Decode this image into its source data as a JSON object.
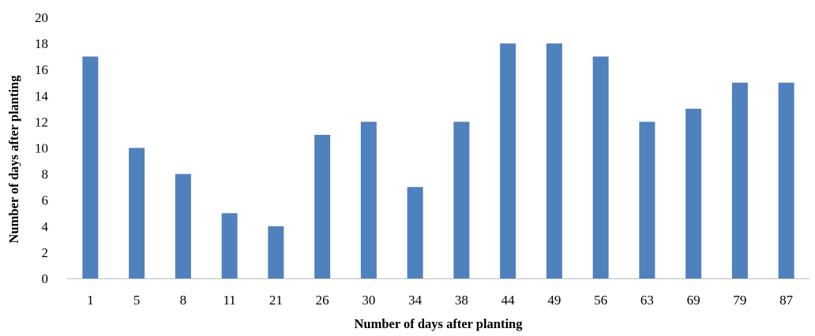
{
  "chart_data": {
    "type": "bar",
    "categories": [
      "1",
      "5",
      "8",
      "11",
      "21",
      "26",
      "30",
      "34",
      "38",
      "44",
      "49",
      "56",
      "63",
      "69",
      "79",
      "87"
    ],
    "values": [
      17,
      10,
      8,
      5,
      4,
      11,
      12,
      7,
      12,
      18,
      18,
      17,
      12,
      13,
      15,
      15
    ],
    "title": "",
    "xlabel": "Number of days after planting",
    "ylabel": "Number of days after planting",
    "ylim": [
      0,
      20
    ],
    "yticks": [
      0,
      2,
      4,
      6,
      8,
      10,
      12,
      14,
      16,
      18,
      20
    ],
    "grid": false,
    "legend": "none",
    "bar_color": "#4F81BD",
    "axis_color": "#BFBFBF"
  }
}
